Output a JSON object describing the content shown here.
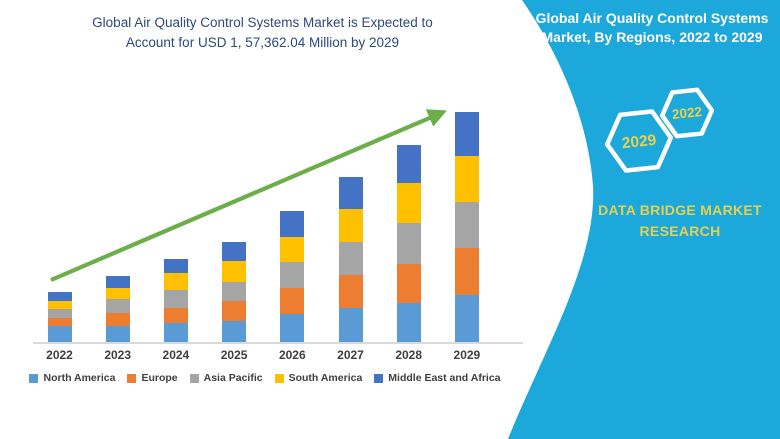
{
  "header": {
    "title_line1": "Global Air Quality Control Systems Market is Expected to",
    "title_line2": "Account for USD 1, 57,362.04 Million by 2029",
    "title_color": "#2B4A7D"
  },
  "side_panel": {
    "background_color": "#1CA8DA",
    "title_line1": "Global Air Quality Control Systems",
    "title_line2": "Market, By Regions, 2022 to 2029",
    "hexagon_badges": [
      {
        "label": "2029"
      },
      {
        "label": "2022"
      }
    ],
    "brand_line1": "DATA BRIDGE MARKET",
    "brand_line2": "RESEARCH",
    "accent_text_color": "#E7D14C",
    "hexagon_outline_color": "#FFFFFF"
  },
  "chart_data": {
    "type": "bar",
    "stacked": true,
    "title": "",
    "categories": [
      "2022",
      "2023",
      "2024",
      "2025",
      "2026",
      "2027",
      "2028",
      "2029"
    ],
    "series": [
      {
        "name": "North America",
        "color": "#5B9BD5",
        "values": [
          10900,
          10950,
          13000,
          14300,
          19100,
          23200,
          26600,
          32062.04
        ]
      },
      {
        "name": "Europe",
        "color": "#ED7D31",
        "values": [
          5500,
          8900,
          10200,
          13650,
          17750,
          22500,
          26600,
          32100
        ]
      },
      {
        "name": "Asia Pacific",
        "color": "#A5A5A5",
        "values": [
          6100,
          9550,
          12300,
          13000,
          17750,
          22500,
          28000,
          31400
        ]
      },
      {
        "name": "South America",
        "color": "#FFC000",
        "values": [
          5500,
          7500,
          11600,
          14300,
          17050,
          22500,
          27300,
          31400
        ]
      },
      {
        "name": "Middle East and Africa",
        "color": "#4472C4",
        "values": [
          6100,
          8200,
          9550,
          13000,
          17750,
          21850,
          25950,
          30400
        ]
      }
    ],
    "totals": [
      34100,
      45100,
      56650,
      68250,
      89400,
      112550,
      134450,
      157362.04
    ],
    "unit": "USD Million",
    "value_axis_labels_visible": false,
    "grid": false,
    "legend_position": "bottom",
    "axis_label_color": "#3F3F3F",
    "baseline_color": "#D9D9D9",
    "trend_arrow_color": "#6BAE4A"
  }
}
